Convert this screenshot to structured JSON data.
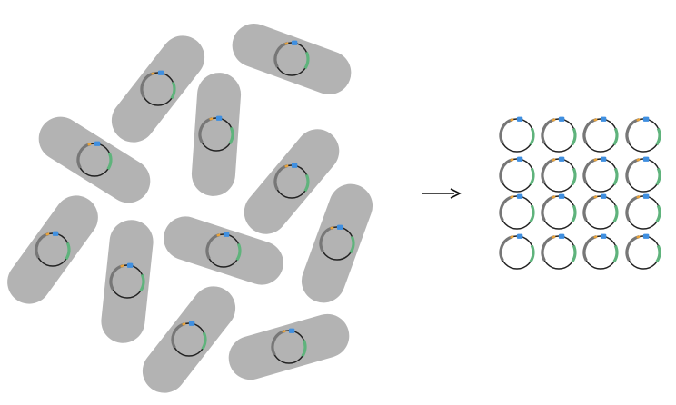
{
  "diagram": {
    "cells": [
      {
        "rot": -52
      },
      {
        "rot": 20
      },
      {
        "rot": 32
      },
      {
        "rot": 94
      },
      {
        "rot": -50
      },
      {
        "rot": -54
      },
      {
        "rot": 96
      },
      {
        "rot": 18
      },
      {
        "rot": 110
      },
      {
        "rot": -52
      },
      {
        "rot": -16
      }
    ],
    "grid": {
      "rows": 4,
      "cols": 4
    },
    "colors": {
      "cell": "#b3b3b3",
      "plasmid_dark": "#222222",
      "plasmid_grey": "#777777",
      "origin": "#3f8fe0",
      "resistance_gene": "#5fb37c",
      "promoter": "#e8a23a",
      "arrow": "#111111"
    },
    "icons": {
      "cell": "rod-shaped-bacterium",
      "plasmid": "circular-plasmid",
      "arrow": "right-arrow"
    }
  }
}
